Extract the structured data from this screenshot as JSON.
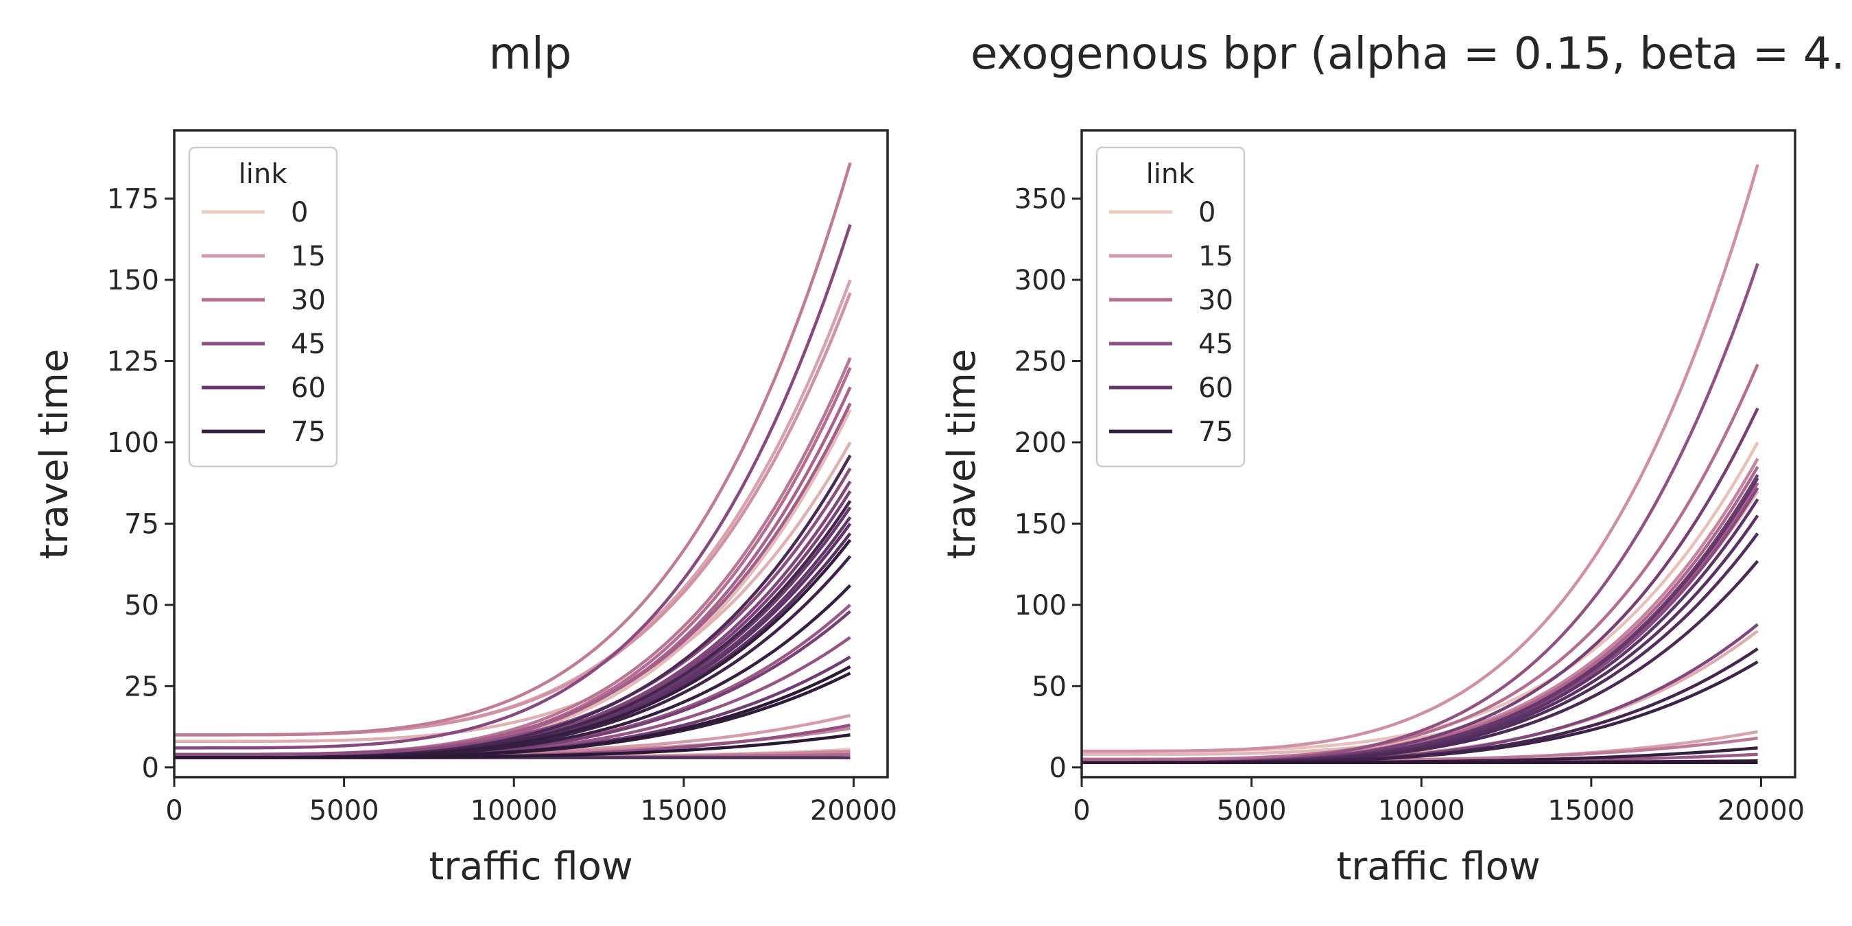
{
  "chart_data": [
    {
      "type": "line",
      "title": "mlp",
      "xlabel": "traffic flow",
      "ylabel": "travel time",
      "xlim": [
        0,
        21000
      ],
      "ylim": [
        -3,
        196
      ],
      "xticks": [
        0,
        5000,
        10000,
        15000,
        20000
      ],
      "yticks": [
        0,
        25,
        50,
        75,
        100,
        125,
        150,
        175
      ],
      "xmax_data": 19900,
      "legend": {
        "title": "link",
        "location": "upper-left",
        "entries": [
          "0",
          "15",
          "30",
          "45",
          "60",
          "75"
        ]
      },
      "curve_model": "y = y0 + (y_end - y0) * (x / 19900)^4",
      "series": [
        {
          "link": 2,
          "y0": 3,
          "y_end": 5.5
        },
        {
          "link": 5,
          "y0": 3,
          "y_end": 110
        },
        {
          "link": 8,
          "y0": 8,
          "y_end": 100
        },
        {
          "link": 12,
          "y0": 10,
          "y_end": 150
        },
        {
          "link": 14,
          "y0": 4,
          "y_end": 16
        },
        {
          "link": 17,
          "y0": 10,
          "y_end": 146
        },
        {
          "link": 20,
          "y0": 3,
          "y_end": 5
        },
        {
          "link": 22,
          "y0": 4,
          "y_end": 12
        },
        {
          "link": 25,
          "y0": 10,
          "y_end": 186
        },
        {
          "link": 27,
          "y0": 4,
          "y_end": 126
        },
        {
          "link": 30,
          "y0": 3,
          "y_end": 123
        },
        {
          "link": 32,
          "y0": 3,
          "y_end": 4
        },
        {
          "link": 35,
          "y0": 3,
          "y_end": 117
        },
        {
          "link": 37,
          "y0": 4,
          "y_end": 112
        },
        {
          "link": 40,
          "y0": 3,
          "y_end": 50
        },
        {
          "link": 42,
          "y0": 3,
          "y_end": 40
        },
        {
          "link": 44,
          "y0": 3,
          "y_end": 13
        },
        {
          "link": 46,
          "y0": 4,
          "y_end": 92
        },
        {
          "link": 48,
          "y0": 6,
          "y_end": 167
        },
        {
          "link": 50,
          "y0": 3,
          "y_end": 88
        },
        {
          "link": 52,
          "y0": 3,
          "y_end": 85
        },
        {
          "link": 54,
          "y0": 3,
          "y_end": 48
        },
        {
          "link": 56,
          "y0": 3,
          "y_end": 34
        },
        {
          "link": 58,
          "y0": 3,
          "y_end": 80
        },
        {
          "link": 60,
          "y0": 3,
          "y_end": 77
        },
        {
          "link": 62,
          "y0": 3,
          "y_end": 75
        },
        {
          "link": 64,
          "y0": 3,
          "y_end": 72
        },
        {
          "link": 66,
          "y0": 3,
          "y_end": 3
        },
        {
          "link": 68,
          "y0": 3,
          "y_end": 96
        },
        {
          "link": 70,
          "y0": 3,
          "y_end": 82
        },
        {
          "link": 72,
          "y0": 3,
          "y_end": 65
        },
        {
          "link": 74,
          "y0": 3,
          "y_end": 56
        },
        {
          "link": 75,
          "y0": 3,
          "y_end": 70
        },
        {
          "link": 76,
          "y0": 3,
          "y_end": 29
        },
        {
          "link": 77,
          "y0": 3,
          "y_end": 31
        },
        {
          "link": 78,
          "y0": 3,
          "y_end": 10
        }
      ]
    },
    {
      "type": "line",
      "title": "exogenous bpr (alpha = 0.15, beta = 4.",
      "xlabel": "traffic flow",
      "ylabel": "travel time",
      "xlim": [
        0,
        21000
      ],
      "ylim": [
        -6,
        392
      ],
      "xticks": [
        0,
        5000,
        10000,
        15000,
        20000
      ],
      "yticks": [
        0,
        50,
        100,
        150,
        200,
        250,
        300,
        350
      ],
      "xmax_data": 19900,
      "legend": {
        "title": "link",
        "location": "upper-left",
        "entries": [
          "0",
          "15",
          "30",
          "45",
          "60",
          "75"
        ]
      },
      "curve_model": "y = y0 + (y_end - y0) * (x / 19900)^4",
      "series": [
        {
          "link": 3,
          "y0": 10,
          "y_end": 200
        },
        {
          "link": 6,
          "y0": 8,
          "y_end": 170
        },
        {
          "link": 9,
          "y0": 4,
          "y_end": 84
        },
        {
          "link": 12,
          "y0": 3,
          "y_end": 22
        },
        {
          "link": 18,
          "y0": 10,
          "y_end": 371
        },
        {
          "link": 22,
          "y0": 5,
          "y_end": 190
        },
        {
          "link": 26,
          "y0": 4,
          "y_end": 18
        },
        {
          "link": 30,
          "y0": 5,
          "y_end": 248
        },
        {
          "link": 33,
          "y0": 4,
          "y_end": 185
        },
        {
          "link": 36,
          "y0": 3,
          "y_end": 175
        },
        {
          "link": 40,
          "y0": 3,
          "y_end": 8
        },
        {
          "link": 44,
          "y0": 3,
          "y_end": 310
        },
        {
          "link": 47,
          "y0": 3,
          "y_end": 172
        },
        {
          "link": 50,
          "y0": 3,
          "y_end": 88
        },
        {
          "link": 54,
          "y0": 3,
          "y_end": 221
        },
        {
          "link": 57,
          "y0": 3,
          "y_end": 180
        },
        {
          "link": 60,
          "y0": 3,
          "y_end": 178
        },
        {
          "link": 62,
          "y0": 3,
          "y_end": 165
        },
        {
          "link": 64,
          "y0": 3,
          "y_end": 155
        },
        {
          "link": 66,
          "y0": 3,
          "y_end": 144
        },
        {
          "link": 68,
          "y0": 3,
          "y_end": 127
        },
        {
          "link": 70,
          "y0": 3,
          "y_end": 73
        },
        {
          "link": 72,
          "y0": 3,
          "y_end": 65
        },
        {
          "link": 74,
          "y0": 3,
          "y_end": 12
        },
        {
          "link": 76,
          "y0": 3,
          "y_end": 4
        },
        {
          "link": 78,
          "y0": 3,
          "y_end": 3
        }
      ]
    }
  ]
}
